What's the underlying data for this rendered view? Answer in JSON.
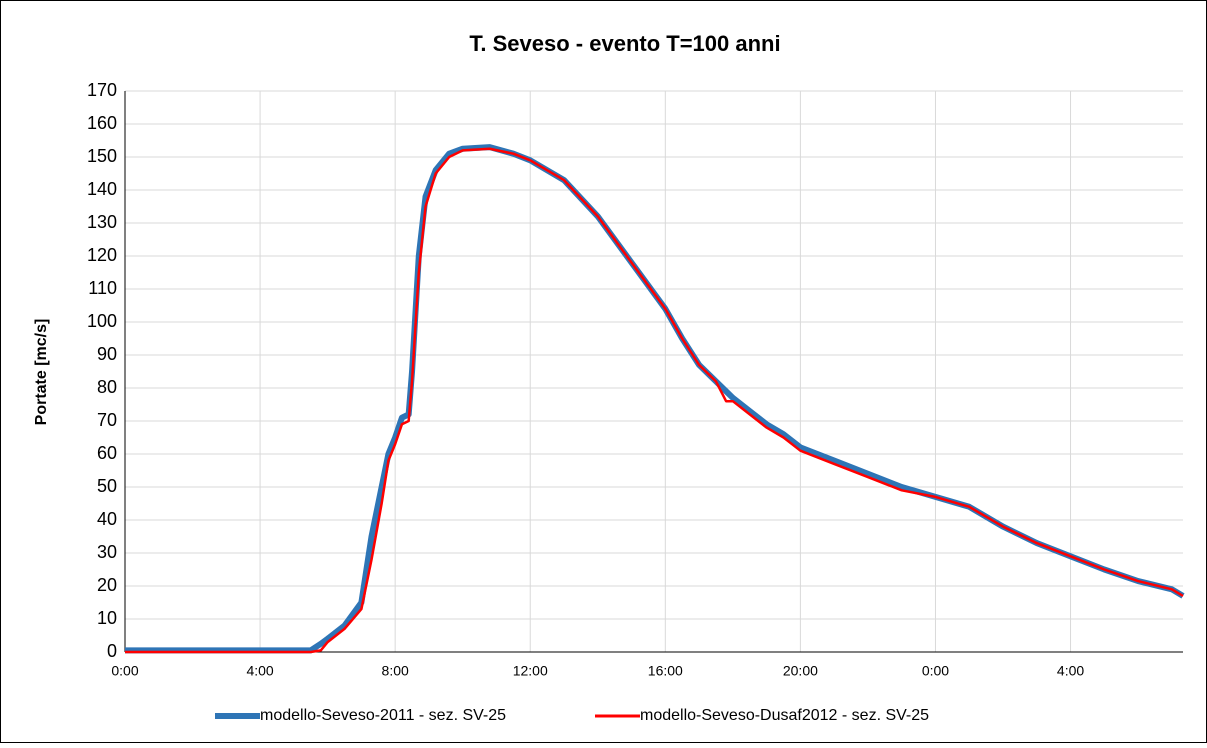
{
  "chart_data": {
    "type": "line",
    "title": "T. Seveso  - evento T=100 anni",
    "y_label": "Portate [mc/s]",
    "x": [
      0,
      5.5,
      5.8,
      6,
      6.5,
      7,
      7.3,
      7.6,
      7.8,
      8,
      8.2,
      8.4,
      8.5,
      8.7,
      8.9,
      9.2,
      9.6,
      10,
      10.8,
      11.5,
      12,
      13,
      14,
      15,
      16,
      16.5,
      17,
      17.5,
      17.8,
      18,
      18.5,
      19,
      19.5,
      20,
      21,
      22,
      23,
      24,
      25,
      26,
      27,
      28,
      29,
      30,
      31,
      31.33
    ],
    "series": [
      {
        "name": "modello-Seveso-2011 - sez. SV-25",
        "color": "#2e75b6",
        "values": [
          0.5,
          0.5,
          2.5,
          4,
          8,
          15,
          35,
          50,
          60,
          65,
          71,
          72,
          85,
          120,
          138,
          146,
          151,
          152.5,
          153,
          151,
          149,
          143,
          132,
          118,
          104,
          95,
          87,
          82,
          79,
          77,
          73,
          69,
          66,
          62,
          58,
          54,
          50,
          47,
          44,
          38,
          33,
          29,
          25,
          21.5,
          19,
          17
        ]
      },
      {
        "name": "modello-Seveso-Dusaf2012 - sez. SV-25",
        "color": "#ff0000",
        "values": [
          0,
          0,
          0.5,
          3,
          7,
          13,
          28,
          45,
          58,
          63,
          69,
          70,
          82,
          115,
          135,
          145,
          150,
          152,
          152.5,
          151,
          149,
          143,
          132,
          118,
          104,
          95,
          87,
          82,
          76,
          76,
          72,
          68,
          65,
          61,
          57,
          53,
          49,
          47,
          44,
          38,
          33,
          29,
          25,
          21.5,
          19,
          17
        ]
      }
    ],
    "xlim": [
      0,
      31.33
    ],
    "xticks": [
      {
        "value": 0,
        "label": "0:00"
      },
      {
        "value": 4,
        "label": "4:00"
      },
      {
        "value": 8,
        "label": "8:00"
      },
      {
        "value": 12,
        "label": "12:00"
      },
      {
        "value": 16,
        "label": "16:00"
      },
      {
        "value": 20,
        "label": "20:00"
      },
      {
        "value": 24,
        "label": "0:00"
      },
      {
        "value": 28,
        "label": "4:00"
      }
    ],
    "ylim": [
      0,
      170
    ],
    "yticks": [
      0,
      10,
      20,
      30,
      40,
      50,
      60,
      70,
      80,
      90,
      100,
      110,
      120,
      130,
      140,
      150,
      160,
      170
    ],
    "grid": true,
    "legend": "bottom"
  }
}
